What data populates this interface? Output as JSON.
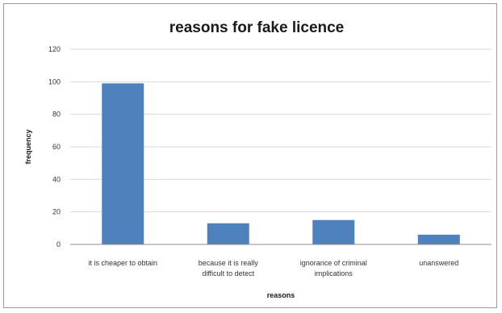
{
  "chart_data": {
    "type": "bar",
    "title": "reasons for fake licence",
    "xlabel": "reasons",
    "ylabel": "frequency",
    "categories": [
      [
        "it is cheaper to obtain"
      ],
      [
        "because it is really",
        "difficult to detect"
      ],
      [
        "ignorance of criminal",
        "implications"
      ],
      [
        "unanswered"
      ]
    ],
    "values": [
      99,
      13,
      15,
      6
    ],
    "ylim": [
      0,
      120
    ],
    "yticks": [
      0,
      20,
      40,
      60,
      80,
      100,
      120
    ],
    "grid": true,
    "legend": "none",
    "bar_color": "#4f81bd"
  }
}
